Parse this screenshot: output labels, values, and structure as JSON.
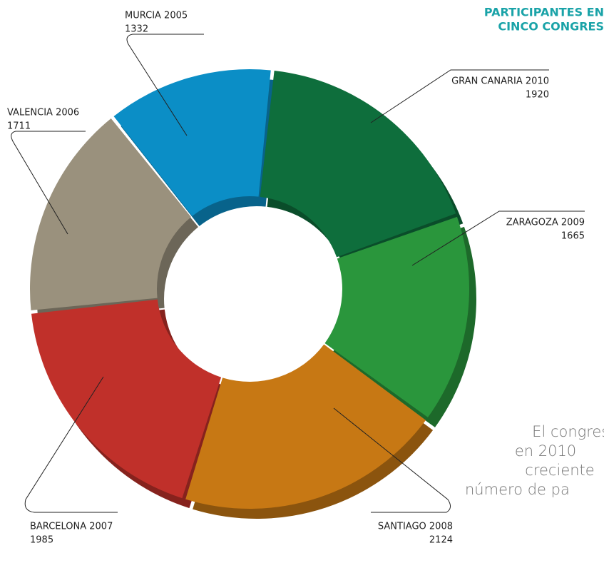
{
  "chart_data": {
    "type": "donut",
    "title": [
      "PARTICIPANTES EN",
      "CINCO CONGRES"
    ],
    "note": [
      "El congreso ha",
      "en 2010",
      "creciente",
      "número de pa"
    ],
    "categories": [
      "GRAN CANARIA 2010",
      "ZARAGOZA 2009",
      "SANTIAGO 2008",
      "BARCELONA 2007",
      "VALENCIA 2006",
      "MURCIA 2005"
    ],
    "values": [
      1920,
      1665,
      2124,
      1985,
      1711,
      1332
    ],
    "colors": [
      "#0e6e3c",
      "#2a963c",
      "#c77814",
      "#c0302a",
      "#9a917d",
      "#0b8ec6"
    ]
  }
}
